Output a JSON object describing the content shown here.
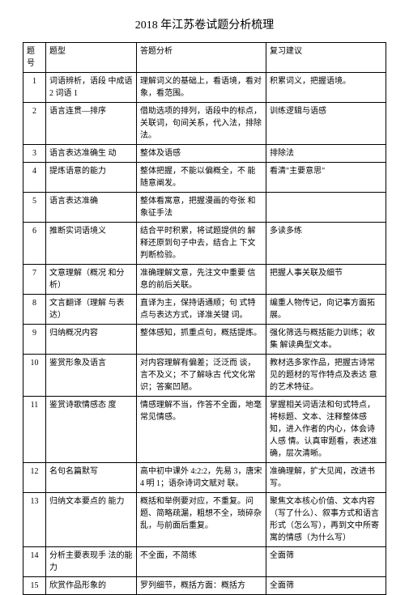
{
  "title": "2018 年江苏卷试题分析梳理",
  "headers": {
    "c1": "题号",
    "c2": "题型",
    "c3": "答题分析",
    "c4": "复习建议"
  },
  "rows": [
    {
      "n": "1",
      "type": "词语辨析，语段 中成语 2 词语 1",
      "analysis": "理解词义的基础上，看语境，看对象，看范围。",
      "advice": "积累词义，把握语境。"
    },
    {
      "n": "2",
      "type": "语言连贯—排序",
      "analysis": "借助选项的排列，语段中的标点，关联词，句间关系，代入法，排除法。",
      "advice": "训练逻辑与语感"
    },
    {
      "n": "3",
      "type": "语言表达准确生 动",
      "analysis": "整体及语感",
      "advice": "排除法"
    },
    {
      "n": "4",
      "type": "提炼语意的能力",
      "analysis": "整体把握，不能以偏概全，不 能随意阐发。",
      "advice": "看清\"主要意思\""
    },
    {
      "n": "5",
      "type": "语言表达准确",
      "analysis": "整体看寓意，把握漫画的夸张 和象征手法",
      "advice": ""
    },
    {
      "n": "6",
      "type": "推断实词语境义",
      "analysis": "结合平时积累，将试题提供的 解释还原到句子中去，结合上 下文判断检验。",
      "advice": "多读多练"
    },
    {
      "n": "7",
      "type": "文意理解（概况 和分析）",
      "analysis": "准确理解文意，先注文中重要 信息的前后关联。",
      "advice": "把握人事关联及细节"
    },
    {
      "n": "8",
      "type": "文言翻译（理解 与表达）",
      "analysis": "直译为主，保持语通顺；句 式特点与表达方式，译准关键 词。",
      "advice": "编重人物传记，向记事方面拓 展。"
    },
    {
      "n": "9",
      "type": "归纳概况内容",
      "analysis": "整体感知，抓重点句，概括提炼。",
      "advice": "强化筛选与概括能力训练；收集 解读典型文本。"
    },
    {
      "n": "10",
      "type": "鉴赏形象及语言",
      "analysis": "对内容理解有偏差；泛泛而 谈，言不及义；不了解咏古 代文化常识；答案凹陋。",
      "advice": "教材选多家作品，把握古诗常 见的题材的写作特点及表达 意的艺术特征。"
    },
    {
      "n": "11",
      "type": "鉴赏诗歌情感态 度",
      "analysis": "情感理解不当，作答不全面，地毫常见情感。",
      "advice": "掌握相关词语法和句式特点，将标题、文本、注释整体感知，进入作者的内心，体会诗人感 情。认真审题看，表述准确，层次清晰。"
    },
    {
      "n": "12",
      "type": "名句名篇默写",
      "analysis": "高中初中课外 4:2:2，先易 3，唐宋 4 明 1；语杂诗词文赋对 联。",
      "advice": "准确理解，扩大见闻，改进书写。"
    },
    {
      "n": "13",
      "type": "归纳文本要点的 能力",
      "analysis": "概括和举例要对应，不重复。问题、简略疏漏，粗想不全，琐碎杂乱，与前面后重复。",
      "advice": "聚焦文本核心价值、文本内容（写了什么）、叙事方式和语言形式（怎么写），再到文中所寄 寓的情感（为什么写）"
    },
    {
      "n": "14",
      "type": "分析主要表现手 法的能力",
      "analysis": "不全面，不简练",
      "advice": "全面筛"
    },
    {
      "n": "15",
      "type": "欣赏作品形象的",
      "analysis": "罗列细节，概括方面：概括方",
      "advice": "全面筛"
    }
  ]
}
